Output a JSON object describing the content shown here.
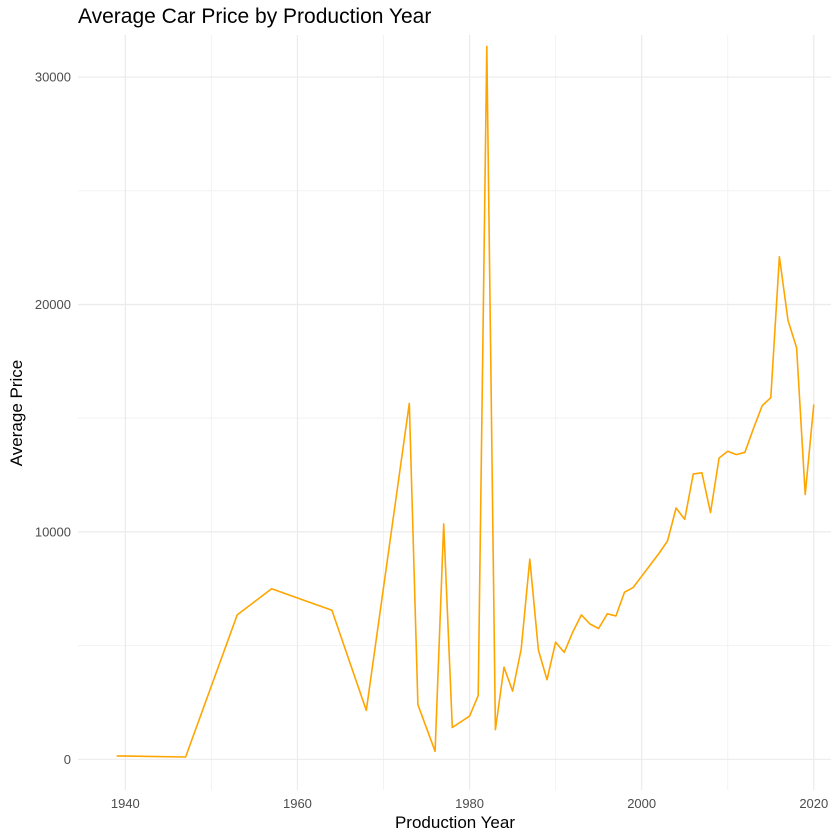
{
  "chart_data": {
    "type": "line",
    "title": "Average Car Price by Production Year",
    "xlabel": "Production Year",
    "ylabel": "Average Price",
    "xlim": [
      1934.5,
      2022
    ],
    "ylim": [
      -1350,
      31850
    ],
    "x_ticks": [
      1940,
      1960,
      1980,
      2000,
      2020
    ],
    "y_ticks": [
      0,
      10000,
      20000,
      30000
    ],
    "x_tick_labels": [
      "1940",
      "1960",
      "1980",
      "2000",
      "2020"
    ],
    "y_tick_labels": [
      "0",
      "10000",
      "20000",
      "30000"
    ],
    "grid": true,
    "series": [
      {
        "color": "#FFA500",
        "x": [
          1939,
          1947,
          1953,
          1957,
          1964,
          1968,
          1973,
          1974,
          1976,
          1977,
          1978,
          1980,
          1981,
          1982,
          1983,
          1984,
          1985,
          1986,
          1987,
          1988,
          1989,
          1990,
          1991,
          1992,
          1993,
          1994,
          1995,
          1996,
          1997,
          1998,
          1999,
          2000,
          2001,
          2002,
          2003,
          2004,
          2005,
          2006,
          2007,
          2008,
          2009,
          2010,
          2011,
          2012,
          2013,
          2014,
          2015,
          2016,
          2017,
          2018,
          2019,
          2020
        ],
        "y": [
          150,
          100,
          6350,
          7500,
          6550,
          2150,
          15650,
          2400,
          350,
          10350,
          1400,
          1900,
          2800,
          31350,
          1300,
          4050,
          3000,
          4850,
          8800,
          4800,
          3500,
          5150,
          4700,
          5600,
          6350,
          5950,
          5750,
          6400,
          6300,
          7350,
          7550,
          8050,
          8550,
          9050,
          9600,
          11050,
          10550,
          12550,
          12600,
          10850,
          13250,
          13550,
          13400,
          13500,
          14550,
          15550,
          15900,
          22100,
          19300,
          18100,
          11650,
          15600
        ]
      }
    ]
  }
}
